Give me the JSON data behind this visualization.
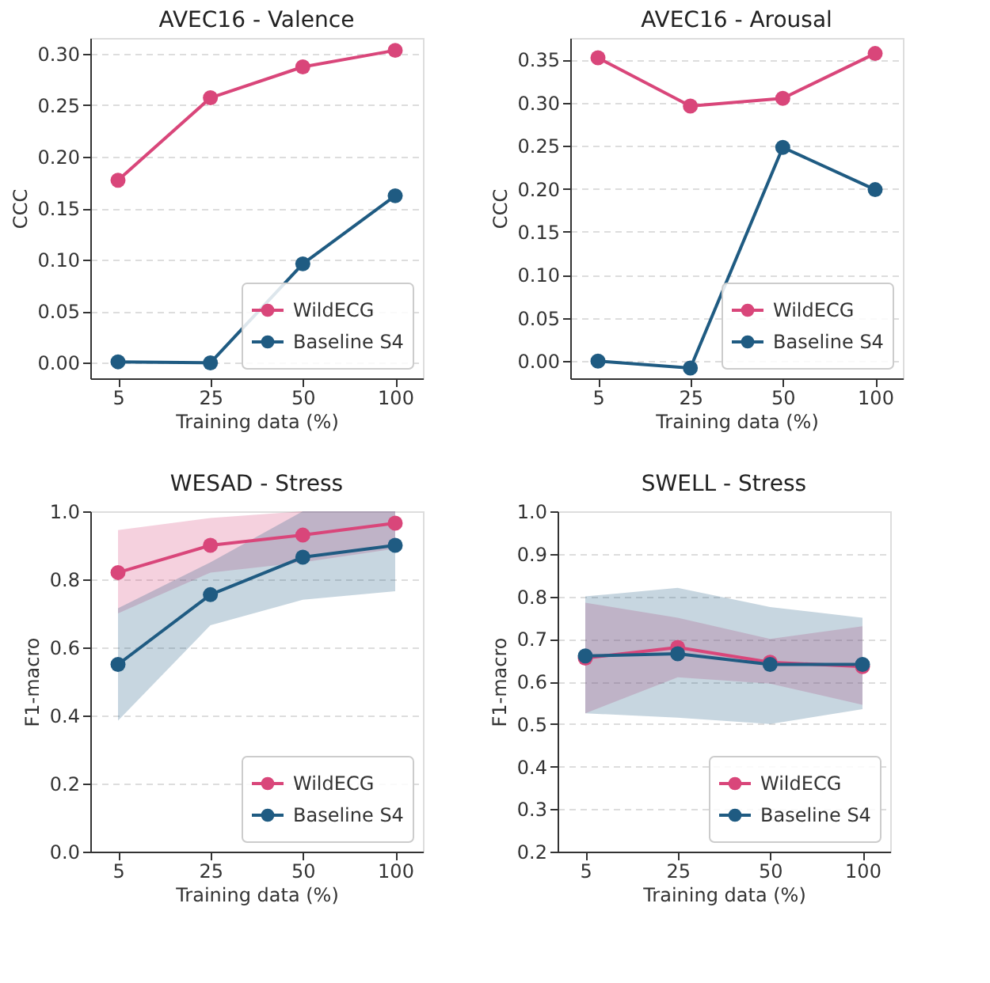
{
  "chart_data": [
    {
      "type": "line",
      "title": "AVEC16 - Valence",
      "xlabel": "Training data (%)",
      "ylabel": "CCC",
      "categories": [
        "5",
        "25",
        "50",
        "100"
      ],
      "ylim": [
        -0.015,
        0.315
      ],
      "yticks": [
        {
          "value": 0,
          "label": "0.00"
        },
        0.05,
        {
          "value": 0.1,
          "label": "0.10"
        },
        0.15,
        {
          "value": 0.2,
          "label": "0.20"
        },
        0.25,
        {
          "value": 0.3,
          "label": "0.30"
        }
      ],
      "grid": "y",
      "legend": "bottom right",
      "marker": "circle",
      "line_style": "solid",
      "series": [
        {
          "name": "WildECG",
          "color": "#d9467a",
          "values": [
            0.177,
            0.257,
            0.287,
            0.303
          ]
        },
        {
          "name": "Baseline S4",
          "color": "#1f5b82",
          "values": [
            0.001,
            0.0,
            0.096,
            0.162
          ]
        }
      ]
    },
    {
      "type": "line",
      "title": "AVEC16 - Arousal",
      "xlabel": "Training data (%)",
      "ylabel": "CCC",
      "categories": [
        "5",
        "25",
        "50",
        "100"
      ],
      "ylim": [
        -0.02,
        0.375
      ],
      "yticks": [
        {
          "value": 0,
          "label": "0.00"
        },
        0.05,
        {
          "value": 0.1,
          "label": "0.10"
        },
        0.15,
        {
          "value": 0.2,
          "label": "0.20"
        },
        0.25,
        {
          "value": 0.3,
          "label": "0.30"
        },
        0.35
      ],
      "grid": "y",
      "legend": "bottom right",
      "marker": "circle",
      "line_style": "solid",
      "series": [
        {
          "name": "WildECG",
          "color": "#d9467a",
          "values": [
            0.352,
            0.296,
            0.305,
            0.357
          ]
        },
        {
          "name": "Baseline S4",
          "color": "#1f5b82",
          "values": [
            0.0,
            -0.008,
            0.248,
            0.199
          ]
        }
      ]
    },
    {
      "type": "line",
      "title": "WESAD - Stress",
      "xlabel": "Training data (%)",
      "ylabel": "F1-macro",
      "categories": [
        "5",
        "25",
        "50",
        "100"
      ],
      "ylim": [
        0,
        1.0
      ],
      "yticks": [
        {
          "value": 0,
          "label": "0.0"
        },
        0.2,
        0.4,
        0.6,
        0.8,
        {
          "value": 1,
          "label": "1.0"
        }
      ],
      "grid": "y",
      "legend": "bottom right",
      "marker": "circle",
      "line_style": "solid",
      "series": [
        {
          "name": "WildECG",
          "color": "#d9467a",
          "values": [
            0.82,
            0.9,
            0.93,
            0.965
          ],
          "lower": [
            0.7,
            0.82,
            0.85,
            0.89
          ],
          "upper": [
            0.945,
            0.98,
            1.0,
            1.0
          ]
        },
        {
          "name": "Baseline S4",
          "color": "#1f5b82",
          "values": [
            0.55,
            0.755,
            0.865,
            0.9
          ],
          "lower": [
            0.385,
            0.665,
            0.74,
            0.765
          ],
          "upper": [
            0.715,
            0.85,
            1.0,
            1.0
          ]
        }
      ]
    },
    {
      "type": "line",
      "title": "SWELL - Stress",
      "xlabel": "Training data (%)",
      "ylabel": "F1-macro",
      "categories": [
        "5",
        "25",
        "50",
        "100"
      ],
      "ylim": [
        0.2,
        1.0
      ],
      "yticks": [
        0.2,
        0.3,
        0.4,
        0.5,
        0.6,
        0.7,
        0.8,
        0.9,
        {
          "value": 1,
          "label": "1.0"
        }
      ],
      "grid": "y",
      "legend": "bottom right",
      "marker": "circle",
      "line_style": "solid",
      "series": [
        {
          "name": "WildECG",
          "color": "#d9467a",
          "values": [
            0.655,
            0.68,
            0.645,
            0.635
          ],
          "lower": [
            0.525,
            0.61,
            0.595,
            0.545
          ],
          "upper": [
            0.785,
            0.75,
            0.7,
            0.73
          ]
        },
        {
          "name": "Baseline S4",
          "color": "#1f5b82",
          "values": [
            0.66,
            0.665,
            0.64,
            0.64
          ],
          "lower": [
            0.525,
            0.515,
            0.5,
            0.535
          ],
          "upper": [
            0.8,
            0.82,
            0.775,
            0.75
          ]
        }
      ]
    }
  ]
}
